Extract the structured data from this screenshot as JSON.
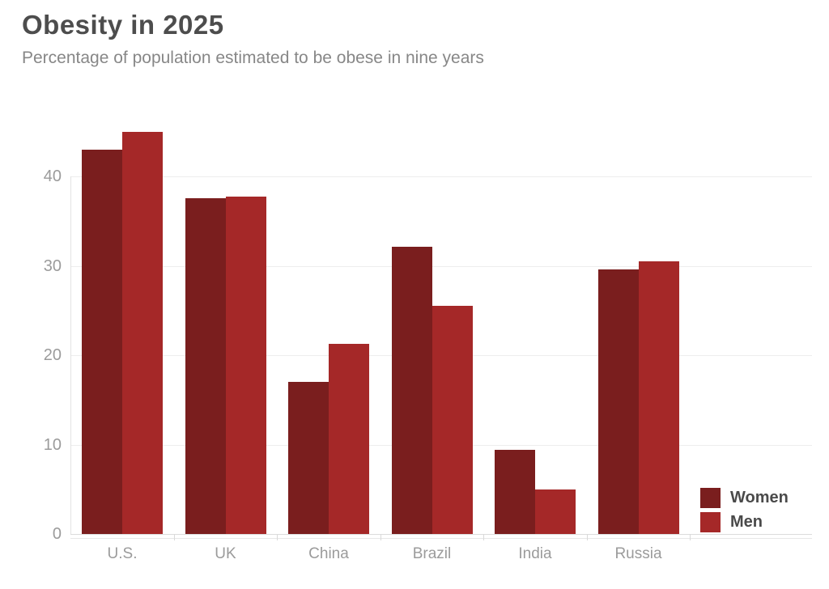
{
  "header": {
    "title": "Obesity in 2025",
    "subtitle": "Percentage of population estimated to be obese in nine years"
  },
  "chart_data": {
    "type": "bar",
    "title": "Obesity in 2025",
    "subtitle": "Percentage of population estimated to be obese in nine years",
    "categories": [
      "U.S.",
      "UK",
      "China",
      "Brazil",
      "India",
      "Russia"
    ],
    "series": [
      {
        "name": "Women",
        "color": "#7a1e1e",
        "values": [
          43,
          37.6,
          17,
          32.2,
          9.4,
          29.6
        ]
      },
      {
        "name": "Men",
        "color": "#a52828",
        "values": [
          45,
          37.8,
          21.3,
          25.5,
          5,
          30.5
        ]
      }
    ],
    "unit": "percent",
    "ylabel": "",
    "xlabel": "",
    "ylim": [
      0,
      46
    ],
    "yticks": [
      0,
      10,
      20,
      30,
      40
    ],
    "grid": true,
    "legend_position": "bottom-right"
  },
  "colors": {
    "title": "#4d4d4d",
    "subtitle": "#878787",
    "axis_text": "#9b9b9b",
    "gridline": "#ededed",
    "women": "#7a1e1e",
    "men": "#a52828",
    "background": "#ffffff"
  }
}
